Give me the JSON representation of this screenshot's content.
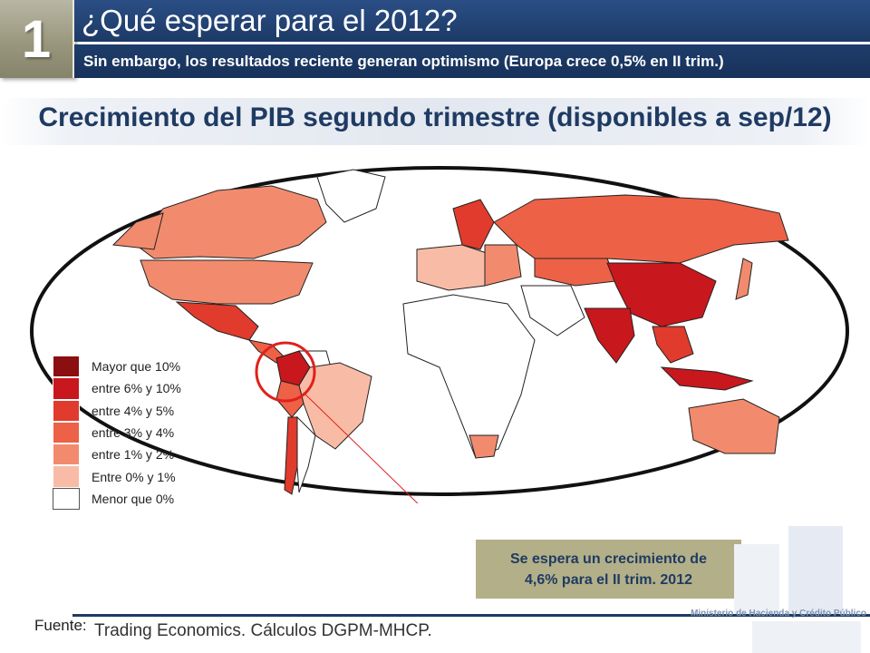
{
  "header": {
    "slide_number": "1",
    "title": "¿Qué esperar para el 2012?",
    "subtitle": "Sin embargo, los resultados reciente generan optimismo (Europa crece 0,5% en II trim.)"
  },
  "main": {
    "heading": "Crecimiento del PIB segundo trimestre (disponibles a sep/12)"
  },
  "legend": {
    "items": [
      {
        "label": "Mayor que 10%",
        "color": "#8b0e10"
      },
      {
        "label": "entre 6% y 10%",
        "color": "#c8171d"
      },
      {
        "label": "entre 4% y 5%",
        "color": "#e03b2c"
      },
      {
        "label": "entre 3% y 4%",
        "color": "#ed6147"
      },
      {
        "label": "entre 1% y 2%",
        "color": "#f28b6e"
      },
      {
        "label": "Entre 0% y 1%",
        "color": "#f8bca6"
      },
      {
        "label": "Menor que 0%",
        "color": "#ffffff"
      }
    ]
  },
  "callout": {
    "line1": "Se espera un crecimiento de",
    "line2": "4,6% para el II trim. 2012"
  },
  "footer": {
    "source_label": "Fuente:",
    "source_text": "Trading Economics. Cálculos DGPM-MHCP.",
    "ministry": "Ministerio de Hacienda y Crédito Público"
  },
  "colors": {
    "brand_navy": "#1f3b63",
    "highlight_circle": "#e0201b"
  }
}
